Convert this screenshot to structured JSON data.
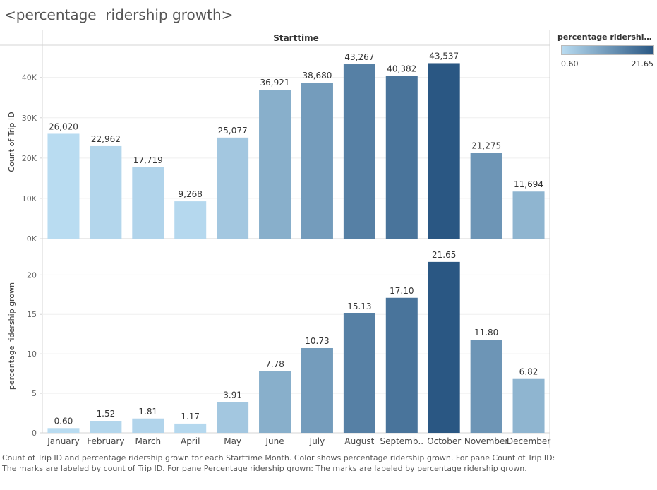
{
  "header": {
    "title": "<percentage  ridership growth>",
    "column_header": "Starttime"
  },
  "legend": {
    "title": "percentage  ridership g..",
    "min_label": "0.60",
    "max_label": "21.65",
    "color_low": "#b9dcf1",
    "color_high": "#2a5783"
  },
  "caption": "Count of Trip ID and percentage  ridership grown for each Starttime Month.  Color shows percentage  ridership grown.  For pane Count of Trip ID:  The marks are labeled by count of Trip ID.  For pane Percentage  ridership grown:  The marks are labeled by percentage  ridership grown.",
  "chart_data": {
    "type": "bar",
    "categories": [
      "January",
      "February",
      "March",
      "April",
      "May",
      "June",
      "July",
      "August",
      "Septemb..",
      "October",
      "November",
      "December"
    ],
    "panes": [
      {
        "ylabel": "Count of Trip ID",
        "values": [
          26020,
          22962,
          17719,
          9268,
          25077,
          36921,
          38680,
          43267,
          40382,
          43537,
          21275,
          11694
        ],
        "value_labels": [
          "26,020",
          "22,962",
          "17,719",
          "9,268",
          "25,077",
          "36,921",
          "38,680",
          "43,267",
          "40,382",
          "43,537",
          "21,275",
          "11,694"
        ],
        "ylim": [
          0,
          48000
        ],
        "ticks": [
          0,
          10000,
          20000,
          30000,
          40000
        ],
        "tick_labels": [
          "0K",
          "10K",
          "20K",
          "30K",
          "40K"
        ]
      },
      {
        "ylabel": "percentage ridership grown",
        "values": [
          0.6,
          1.52,
          1.81,
          1.17,
          3.91,
          7.78,
          10.73,
          15.13,
          17.1,
          21.65,
          11.8,
          6.82
        ],
        "value_labels": [
          "0.60",
          "1.52",
          "1.81",
          "1.17",
          "3.91",
          "7.78",
          "10.73",
          "15.13",
          "17.10",
          "21.65",
          "11.80",
          "6.82"
        ],
        "ylim": [
          0,
          24.5
        ],
        "ticks": [
          0,
          5,
          10,
          15,
          20
        ],
        "tick_labels": [
          "0",
          "5",
          "10",
          "15",
          "20"
        ]
      }
    ],
    "color_values": [
      0.6,
      1.52,
      1.81,
      1.17,
      3.91,
      7.78,
      10.73,
      15.13,
      17.1,
      21.65,
      11.8,
      6.82
    ],
    "color_range": [
      0.6,
      21.65
    ],
    "grid": true
  }
}
